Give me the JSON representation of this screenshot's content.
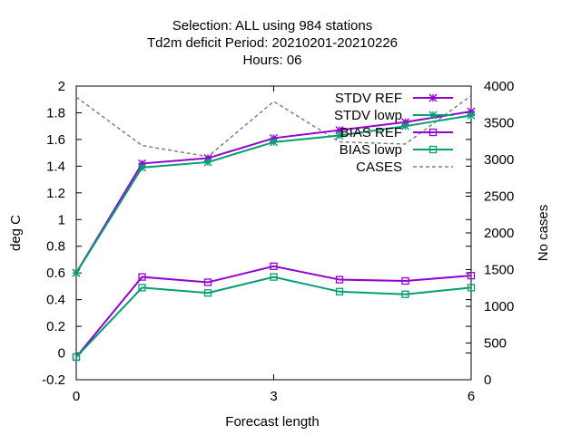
{
  "chart_data": {
    "type": "line",
    "title_lines": [
      "Selection: ALL using   984 stations",
      "Td2m deficit   Period: 20210201-20210226",
      "Hours:  06"
    ],
    "xlabel": "Forecast length",
    "ylabel": "deg C",
    "y2label": "No cases",
    "xlim": [
      0,
      6
    ],
    "ylim": [
      -0.2,
      2
    ],
    "y2lim": [
      0,
      4000
    ],
    "xticks": [
      "0",
      "3",
      "6"
    ],
    "yticks": [
      "-0.2",
      "0",
      "0.2",
      "0.4",
      "0.6",
      "0.8",
      "1",
      "1.2",
      "1.4",
      "1.6",
      "1.8",
      "2"
    ],
    "y2ticks": [
      "0",
      "500",
      "1000",
      "1500",
      "2000",
      "2500",
      "3000",
      "3500",
      "4000"
    ],
    "grid": false,
    "legend_position": "top-right",
    "x": [
      0,
      1,
      2,
      3,
      4,
      5,
      6
    ],
    "series": [
      {
        "name": "STDV REF",
        "axis": "y",
        "color": "#9400d3",
        "marker": "star",
        "values": [
          0.6,
          1.42,
          1.46,
          1.61,
          1.67,
          1.73,
          1.81
        ]
      },
      {
        "name": "STDV lowp",
        "axis": "y",
        "color": "#009e73",
        "marker": "star",
        "values": [
          0.6,
          1.39,
          1.43,
          1.58,
          1.63,
          1.7,
          1.78
        ]
      },
      {
        "name": "BIAS REF",
        "axis": "y",
        "color": "#9400d3",
        "marker": "square",
        "values": [
          -0.03,
          0.57,
          0.53,
          0.65,
          0.55,
          0.54,
          0.58
        ]
      },
      {
        "name": "BIAS lowp",
        "axis": "y",
        "color": "#009e73",
        "marker": "square",
        "values": [
          -0.03,
          0.49,
          0.45,
          0.57,
          0.46,
          0.44,
          0.49
        ]
      },
      {
        "name": "CASES",
        "axis": "y2",
        "color": "#808080",
        "marker": "none",
        "dashed": true,
        "values": [
          3850,
          3190,
          3040,
          3790,
          3240,
          3210,
          3870
        ]
      }
    ]
  }
}
